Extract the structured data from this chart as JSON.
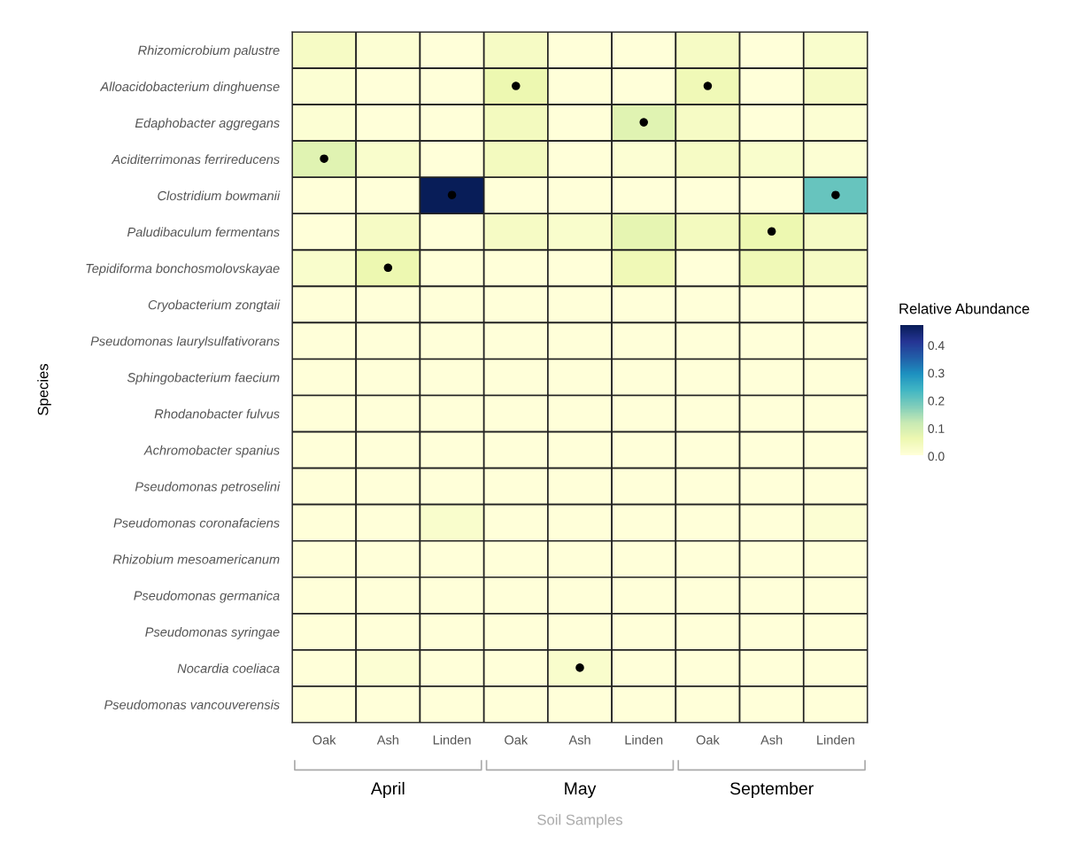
{
  "chart_data": {
    "type": "heatmap",
    "categories": [
      "Oak",
      "Ash",
      "Linden",
      "Oak",
      "Ash",
      "Linden",
      "Oak",
      "Ash",
      "Linden"
    ],
    "y_categories": [
      "Rhizomicrobium palustre",
      "Alloacidobacterium dinghuense",
      "Edaphobacter aggregans",
      "Aciditerrimonas ferrireducens",
      "Clostridium bowmanii",
      "Paludibaculum fermentans",
      "Tepidiforma bonchosmolovskayae",
      "Cryobacterium zongtaii",
      "Pseudomonas laurylsulfativorans",
      "Sphingobacterium faecium",
      "Rhodanobacter fulvus",
      "Achromobacter spanius",
      "Pseudomonas petroselini",
      "Pseudomonas coronafaciens",
      "Rhizobium mesoamericanum",
      "Pseudomonas germanica",
      "Pseudomonas syringae",
      "Nocardia coeliaca",
      "Pseudomonas vancouverensis"
    ],
    "cells": [
      [
        0.03,
        0.01,
        0,
        0.03,
        0,
        0,
        0.03,
        0,
        0.02
      ],
      [
        0.01,
        0,
        0,
        0.06,
        0,
        0,
        0.05,
        0,
        0.03
      ],
      [
        0.01,
        0,
        0,
        0.04,
        0,
        0.08,
        0.03,
        0,
        0.01
      ],
      [
        0.08,
        0.02,
        0,
        0.04,
        0,
        0.01,
        0.03,
        0.02,
        0.01
      ],
      [
        0,
        0,
        0.47,
        0,
        0,
        0,
        0,
        0,
        0.2
      ],
      [
        0,
        0.03,
        0,
        0.03,
        0.02,
        0.07,
        0.04,
        0.06,
        0.03
      ],
      [
        0.02,
        0.06,
        0,
        0,
        0,
        0.05,
        0,
        0.05,
        0.03
      ],
      [
        0,
        0,
        0,
        0,
        0,
        0,
        0,
        0,
        0
      ],
      [
        0,
        0,
        0,
        0,
        0,
        0,
        0,
        0,
        0
      ],
      [
        0,
        0,
        0,
        0,
        0,
        0,
        0,
        0,
        0
      ],
      [
        0,
        0,
        0,
        0,
        0,
        0,
        0,
        0,
        0
      ],
      [
        0,
        0,
        0,
        0,
        0,
        0,
        0,
        0,
        0
      ],
      [
        0,
        0,
        0,
        0,
        0,
        0,
        0,
        0,
        0
      ],
      [
        0,
        0,
        0.02,
        0,
        0,
        0,
        0,
        0,
        0.01
      ],
      [
        0,
        0,
        0,
        0,
        0,
        0,
        0,
        0,
        0
      ],
      [
        0,
        0,
        0,
        0,
        0,
        0,
        0,
        0,
        0
      ],
      [
        0,
        0,
        0,
        0,
        0,
        0,
        0,
        0,
        0
      ],
      [
        0,
        0.01,
        0,
        0,
        0.02,
        0,
        0,
        0,
        0
      ],
      [
        0,
        0,
        0,
        0,
        0,
        0,
        0,
        0,
        0
      ]
    ],
    "cell_labels": [
      [
        null,
        null,
        null,
        null,
        null,
        null,
        null,
        null,
        null
      ],
      [
        null,
        null,
        null,
        "●",
        null,
        null,
        "●",
        null,
        null
      ],
      [
        null,
        null,
        null,
        null,
        null,
        "●",
        null,
        null,
        null
      ],
      [
        "●",
        null,
        null,
        null,
        null,
        null,
        null,
        null,
        null
      ],
      [
        null,
        null,
        "●",
        null,
        null,
        null,
        null,
        null,
        "●"
      ],
      [
        null,
        null,
        null,
        null,
        null,
        null,
        null,
        "●",
        null
      ],
      [
        null,
        "●",
        null,
        null,
        null,
        null,
        null,
        null,
        null
      ],
      [
        null,
        null,
        null,
        null,
        null,
        null,
        null,
        null,
        null
      ],
      [
        null,
        null,
        null,
        null,
        null,
        null,
        null,
        null,
        null
      ],
      [
        null,
        null,
        null,
        null,
        null,
        null,
        null,
        null,
        null
      ],
      [
        null,
        null,
        null,
        null,
        null,
        null,
        null,
        null,
        null
      ],
      [
        null,
        null,
        null,
        null,
        null,
        null,
        null,
        null,
        null
      ],
      [
        null,
        null,
        null,
        null,
        null,
        null,
        null,
        null,
        null
      ],
      [
        null,
        null,
        null,
        null,
        null,
        null,
        null,
        null,
        null
      ],
      [
        null,
        null,
        null,
        null,
        null,
        null,
        null,
        null,
        null
      ],
      [
        null,
        null,
        null,
        null,
        null,
        null,
        null,
        null,
        null
      ],
      [
        null,
        null,
        null,
        null,
        null,
        null,
        null,
        null,
        null
      ],
      [
        null,
        null,
        null,
        null,
        "●",
        null,
        null,
        null,
        null
      ],
      [
        null,
        null,
        null,
        null,
        null,
        null,
        null,
        null,
        null
      ]
    ],
    "clim": [
      0,
      0.47
    ],
    "cticks": [
      {
        "value": 0,
        "label": "0.0"
      },
      0.1,
      0.2,
      0.3,
      0.4
    ],
    "clabel": "Relative Abundance",
    "xlabel": "Soil Samples",
    "ylabel": "Species",
    "annotations": [
      "April",
      "May",
      "September"
    ]
  }
}
